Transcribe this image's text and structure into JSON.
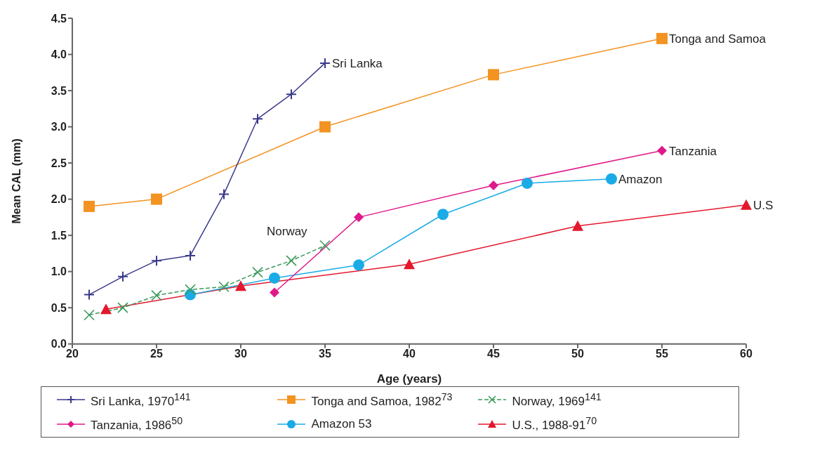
{
  "chart_data": {
    "type": "line",
    "xlabel": "Age (years)",
    "ylabel": "Mean CAL (mm)",
    "xlim": [
      20,
      60
    ],
    "xticks": [
      20,
      25,
      30,
      35,
      40,
      45,
      50,
      55,
      60
    ],
    "ylim": [
      0,
      4.5
    ],
    "yticks": [
      {
        "value": 0,
        "label": "0.0"
      },
      0.5,
      {
        "value": 1,
        "label": "1.0"
      },
      1.5,
      {
        "value": 2,
        "label": "2.0"
      },
      2.5,
      {
        "value": 3,
        "label": "3.0"
      },
      3.5,
      {
        "value": 4,
        "label": "4.0"
      },
      4.5
    ],
    "grid": false,
    "legend": "bottom",
    "series": [
      {
        "name": "Sri Lanka, 1970$^{141}$",
        "color": "#3a3a8c",
        "marker": "plus",
        "x": [
          21,
          23,
          25,
          27,
          29,
          31,
          33,
          35
        ],
        "values": [
          0.68,
          0.93,
          1.15,
          1.22,
          2.07,
          3.11,
          3.45,
          3.88
        ]
      },
      {
        "name": "Tonga and Samoa, 1982$^{73}$",
        "color": "#f39321",
        "marker": "square",
        "x": [
          21,
          25,
          35,
          45,
          55
        ],
        "values": [
          1.9,
          2.0,
          3.0,
          3.72,
          4.22
        ]
      },
      {
        "name": "Norway, 1969$^{141}$",
        "color": "#3a9a5a",
        "marker": "cross",
        "line_style": "dashed",
        "x": [
          21,
          23,
          25,
          27,
          29,
          31,
          33,
          35
        ],
        "values": [
          0.4,
          0.5,
          0.67,
          0.75,
          0.79,
          0.99,
          1.15,
          1.36
        ]
      },
      {
        "name": "Tanzania, 1986$^{50}$",
        "color": "#e0198a",
        "marker": "diamond",
        "x": [
          32,
          37,
          45,
          55
        ],
        "values": [
          0.71,
          1.75,
          2.19,
          2.67
        ]
      },
      {
        "name": "Amazon 53",
        "color": "#1aabe6",
        "marker": "circle",
        "x": [
          27,
          32,
          37,
          42,
          47,
          52
        ],
        "values": [
          0.68,
          0.91,
          1.09,
          1.79,
          2.22,
          2.28
        ]
      },
      {
        "name": "U.S., 1988-91$^{70}$",
        "color": "#e3182d",
        "marker": "triangle",
        "x": [
          22,
          30,
          40,
          50,
          60
        ],
        "values": [
          0.48,
          0.8,
          1.1,
          1.63,
          1.92
        ]
      }
    ],
    "annotations": [
      {
        "text": "Sri Lanka",
        "x": 35,
        "y": 3.88
      },
      {
        "text": "Tonga and Samoa",
        "x": 55,
        "y": 4.22
      },
      "Norway",
      {
        "text": "Tanzania",
        "x": 55,
        "y": 2.67
      },
      {
        "text": "Amazon",
        "x": 52,
        "y": 2.28
      },
      {
        "text": "U.S",
        "x": 60,
        "y": 1.92
      }
    ]
  }
}
